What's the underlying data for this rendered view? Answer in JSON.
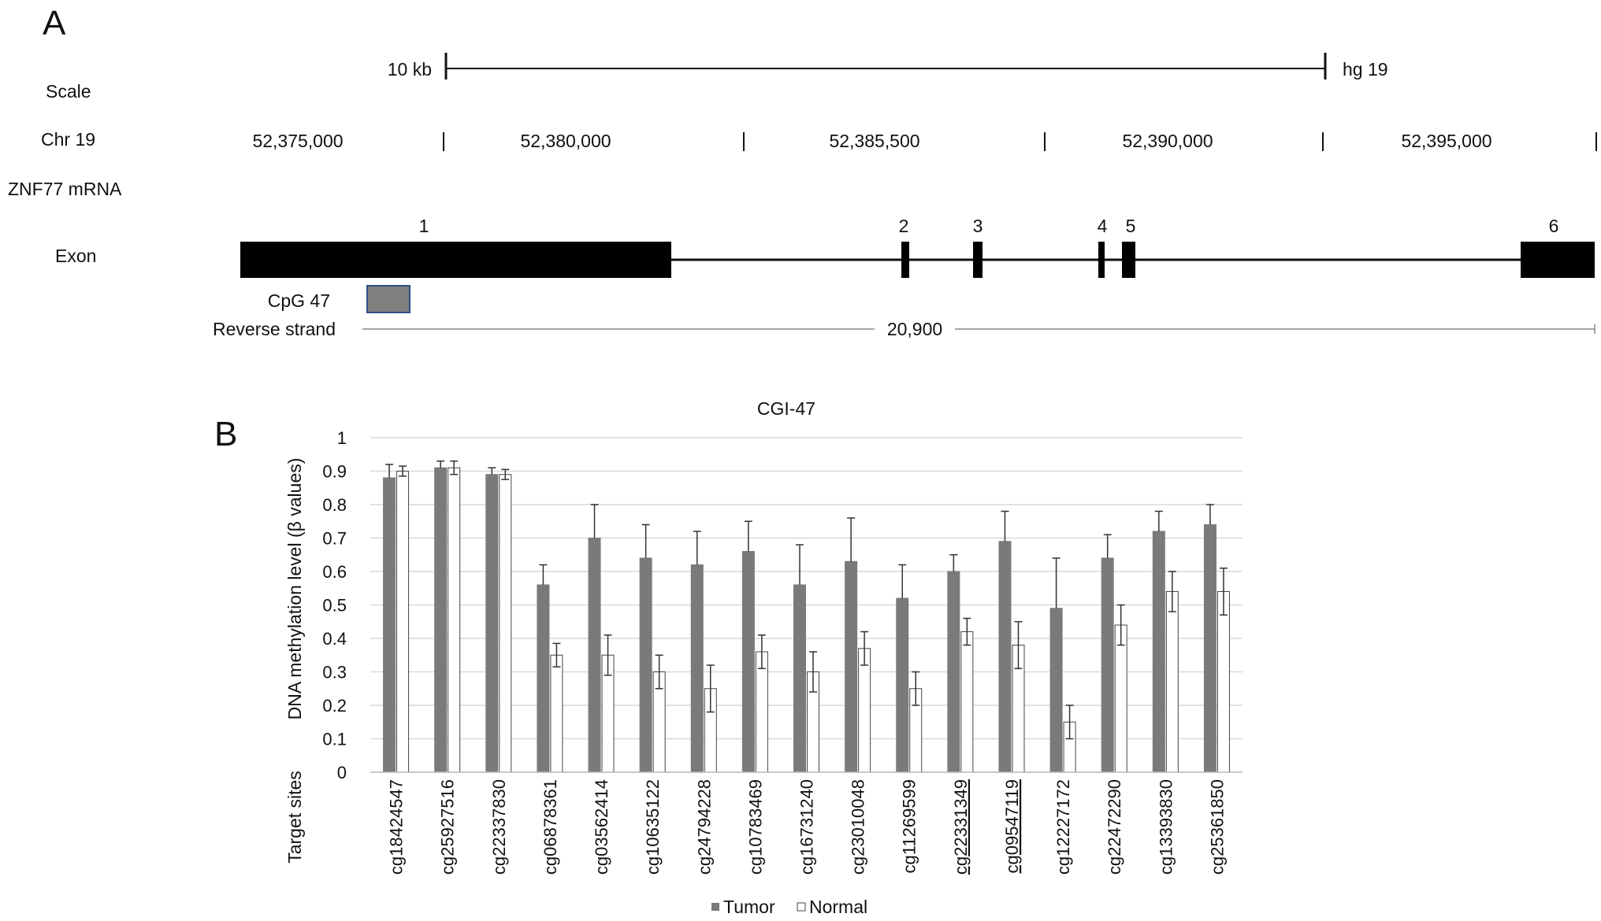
{
  "panel_a": {
    "panel_letter": "A",
    "row_labels": {
      "scale": "Scale",
      "chr": "Chr 19",
      "mrna": "ZNF77 mRNA",
      "exon": "Exon"
    },
    "scale_bar": {
      "left_label": "10 kb",
      "right_label": "hg 19"
    },
    "chr_positions": [
      "52,375,000",
      "52,380,000",
      "52,385,500",
      "52,390,000",
      "52,395,000"
    ],
    "exon_numbers": [
      "1",
      "2",
      "3",
      "4",
      "5",
      "6"
    ],
    "cpg_label": "CpG 47",
    "reverse_strand_label": "Reverse strand",
    "strand_length": "20,900",
    "colors": {
      "exon": "#000000",
      "cpg_fill": "#7f7f7f",
      "cpg_border": "#2f4f86"
    }
  },
  "panel_b": {
    "panel_letter": "B",
    "target_sites_label": "Target sites",
    "colors": {
      "tumor": "#7a7a7a",
      "normal": "#ffffff",
      "grid": "#d9d9d9"
    }
  },
  "chart_data": {
    "type": "bar",
    "title": "CGI-47",
    "xlabel": "Target sites",
    "ylabel": "DNA methylation level (β values)",
    "ylim": [
      0,
      1
    ],
    "yticks": [
      "0",
      "0.1",
      "0.2",
      "0.3",
      "0.4",
      "0.5",
      "0.6",
      "0.7",
      "0.8",
      "0.9",
      "1"
    ],
    "grid": true,
    "legend_position": "bottom",
    "categories": [
      "cg18424547",
      "cg25927516",
      "cg22337830",
      "cg06878361",
      "cg03562414",
      "cg10635122",
      "cg24794228",
      "cg10783469",
      "cg16731240",
      "cg23010048",
      "cg11269599",
      "cg22331349",
      "cg09547119",
      "cg12227172",
      "cg22472290",
      "cg13393830",
      "cg25361850"
    ],
    "underlined_categories": [
      "cg22331349",
      "cg09547119"
    ],
    "series": [
      {
        "name": "Tumor",
        "values": [
          0.88,
          0.91,
          0.89,
          0.56,
          0.7,
          0.64,
          0.62,
          0.66,
          0.56,
          0.63,
          0.52,
          0.6,
          0.69,
          0.49,
          0.64,
          0.72,
          0.74
        ],
        "errors": [
          0.04,
          0.02,
          0.02,
          0.06,
          0.1,
          0.1,
          0.1,
          0.09,
          0.12,
          0.13,
          0.1,
          0.05,
          0.09,
          0.15,
          0.07,
          0.06,
          0.06
        ]
      },
      {
        "name": "Normal",
        "values": [
          0.9,
          0.91,
          0.89,
          0.35,
          0.35,
          0.3,
          0.25,
          0.36,
          0.3,
          0.37,
          0.25,
          0.42,
          0.38,
          0.15,
          0.44,
          0.54,
          0.54
        ],
        "errors": [
          0.015,
          0.02,
          0.015,
          0.035,
          0.06,
          0.05,
          0.07,
          0.05,
          0.06,
          0.05,
          0.05,
          0.04,
          0.07,
          0.05,
          0.06,
          0.06,
          0.07
        ]
      }
    ]
  }
}
